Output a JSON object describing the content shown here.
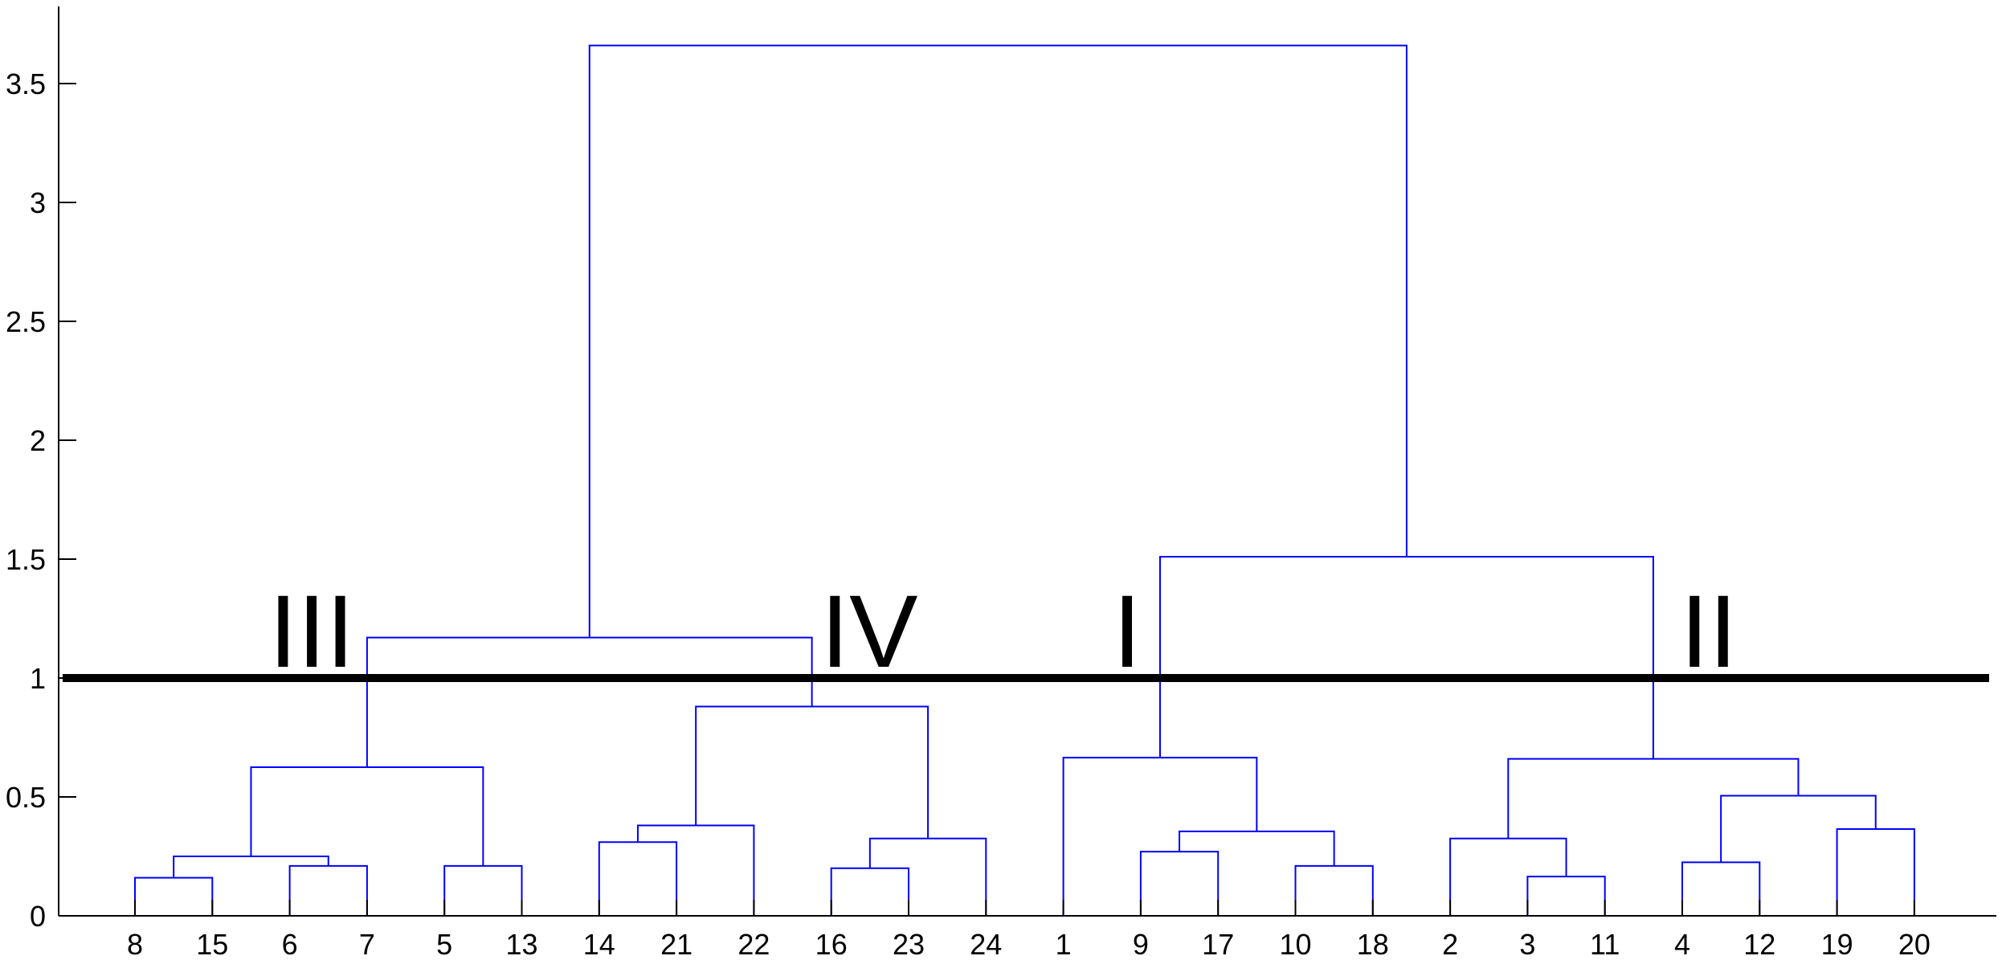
{
  "chart_data": {
    "type": "dendrogram",
    "title": "",
    "xlabel": "",
    "ylabel": "",
    "ylim": [
      0,
      3.75
    ],
    "y_ticks": [
      {
        "value": 0,
        "label": "0"
      },
      {
        "value": 0.5,
        "label": "0.5"
      },
      {
        "value": 1,
        "label": "1"
      },
      {
        "value": 1.5,
        "label": "1.5"
      },
      {
        "value": 2,
        "label": "2"
      },
      {
        "value": 2.5,
        "label": "2.5"
      },
      {
        "value": 3,
        "label": "3"
      },
      {
        "value": 3.5,
        "label": "3.5"
      }
    ],
    "leaf_order": [
      "8",
      "15",
      "6",
      "7",
      "5",
      "13",
      "14",
      "21",
      "22",
      "16",
      "23",
      "24",
      "1",
      "9",
      "17",
      "10",
      "18",
      "2",
      "3",
      "11",
      "4",
      "12",
      "19",
      "20"
    ],
    "merges": [
      {
        "left": "8",
        "right": "15",
        "height": 0.16
      },
      {
        "left": "6",
        "right": "7",
        "height": 0.21
      },
      {
        "left": "8+15",
        "right": "6+7",
        "height": 0.25
      },
      {
        "left": "5",
        "right": "13",
        "height": 0.21
      },
      {
        "left": "8+15+6+7",
        "right": "5+13",
        "height": 0.625
      },
      {
        "left": "14",
        "right": "21",
        "height": 0.31
      },
      {
        "left": "14+21",
        "right": "22",
        "height": 0.38
      },
      {
        "left": "16",
        "right": "23",
        "height": 0.2
      },
      {
        "left": "16+23",
        "right": "24",
        "height": 0.325
      },
      {
        "left": "14+21+22",
        "right": "16+23+24",
        "height": 0.88
      },
      {
        "left": "III",
        "right": "IV",
        "height": 1.17
      },
      {
        "left": "9",
        "right": "17",
        "height": 0.27
      },
      {
        "left": "10",
        "right": "18",
        "height": 0.21
      },
      {
        "left": "9+17",
        "right": "10+18",
        "height": 0.355
      },
      {
        "left": "1",
        "right": "9+17+10+18",
        "height": 0.665
      },
      {
        "left": "3",
        "right": "11",
        "height": 0.165
      },
      {
        "left": "2",
        "right": "3+11",
        "height": 0.325
      },
      {
        "left": "4",
        "right": "12",
        "height": 0.225
      },
      {
        "left": "19",
        "right": "20",
        "height": 0.365
      },
      {
        "left": "4+12",
        "right": "19+20",
        "height": 0.505
      },
      {
        "left": "2+3+11",
        "right": "4+12+19+20",
        "height": 0.66
      },
      {
        "left": "I",
        "right": "II",
        "height": 1.51
      },
      {
        "left": "III+IV",
        "right": "I+II",
        "height": 3.66
      }
    ],
    "cut_line": {
      "value": 1.0
    },
    "cluster_labels": [
      {
        "label": "III",
        "at": 1.25
      },
      {
        "label": "IV",
        "at": 1.25
      },
      {
        "label": "I",
        "at": 1.25
      },
      {
        "label": "II",
        "at": 1.25
      }
    ],
    "link_color": "#0000ff",
    "cut_line_color": "#000000",
    "grid": false
  }
}
